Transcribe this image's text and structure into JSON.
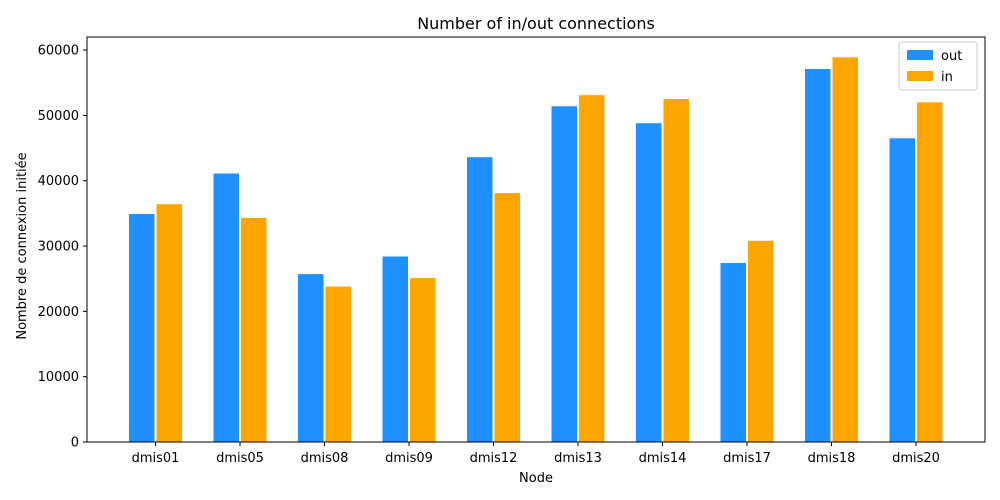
{
  "chart_data": {
    "type": "bar",
    "title": "Number of in/out connections",
    "xlabel": "Node",
    "ylabel": "Nombre de connexion initiée",
    "categories": [
      "dmis01",
      "dmis05",
      "dmis08",
      "dmis09",
      "dmis12",
      "dmis13",
      "dmis14",
      "dmis17",
      "dmis18",
      "dmis20"
    ],
    "series": [
      {
        "name": "out",
        "color": "#1e90ff",
        "values": [
          34900,
          41100,
          25700,
          28400,
          43600,
          51400,
          48800,
          27400,
          57100,
          46500
        ]
      },
      {
        "name": "in",
        "color": "#ffa500",
        "values": [
          36400,
          34300,
          23800,
          25100,
          38100,
          53100,
          52500,
          30800,
          58900,
          52000
        ]
      }
    ],
    "ylim": [
      0,
      62000
    ],
    "yticks": [
      0,
      10000,
      20000,
      30000,
      40000,
      50000,
      60000
    ],
    "grid": false,
    "legend_position": "top-right"
  }
}
